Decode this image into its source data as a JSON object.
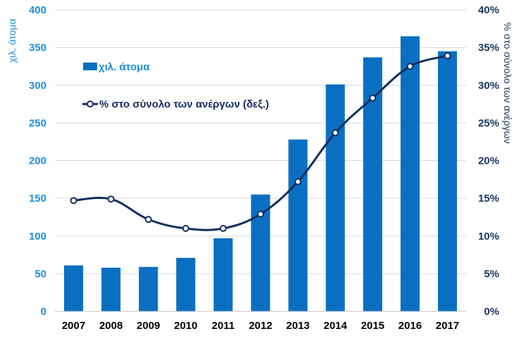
{
  "chart_data": {
    "type": "bar+line",
    "categories": [
      "2007",
      "2008",
      "2009",
      "2010",
      "2011",
      "2012",
      "2013",
      "2014",
      "2015",
      "2016",
      "2017"
    ],
    "series": [
      {
        "name": "χιλ. άτομα",
        "type": "bar",
        "axis": "left",
        "color": "#0b6fc1",
        "values": [
          61,
          58,
          59,
          71,
          97,
          155,
          228,
          301,
          337,
          365,
          345
        ]
      },
      {
        "name": "% στο σύνολο των ανέργων (δεξ.)",
        "type": "line",
        "axis": "right",
        "color": "#102e5e",
        "marker": "hollow-circle",
        "values": [
          14.7,
          14.9,
          12.2,
          11.0,
          11.0,
          12.9,
          17.2,
          23.7,
          28.3,
          32.5,
          33.9
        ]
      }
    ],
    "yleft": {
      "label": "χιλ. άτομα",
      "ylim": [
        0,
        400
      ],
      "ticks": [
        "0",
        "50",
        "100",
        "150",
        "200",
        "250",
        "300",
        "350",
        "400"
      ]
    },
    "yright": {
      "label": "% στο σύνολο των ανέργων",
      "ylim": [
        0,
        40
      ],
      "ticks": [
        "0%",
        "5%",
        "10%",
        "15%",
        "20%",
        "25%",
        "30%",
        "35%",
        "40%"
      ]
    },
    "grid": true,
    "legend_position": "top-left"
  },
  "colors": {
    "bar": "#0b6fc1",
    "line": "#102e5e",
    "left_axis_text": "#1f8fd6",
    "right_axis_text": "#17365d",
    "grid": "#d9d9d9"
  }
}
